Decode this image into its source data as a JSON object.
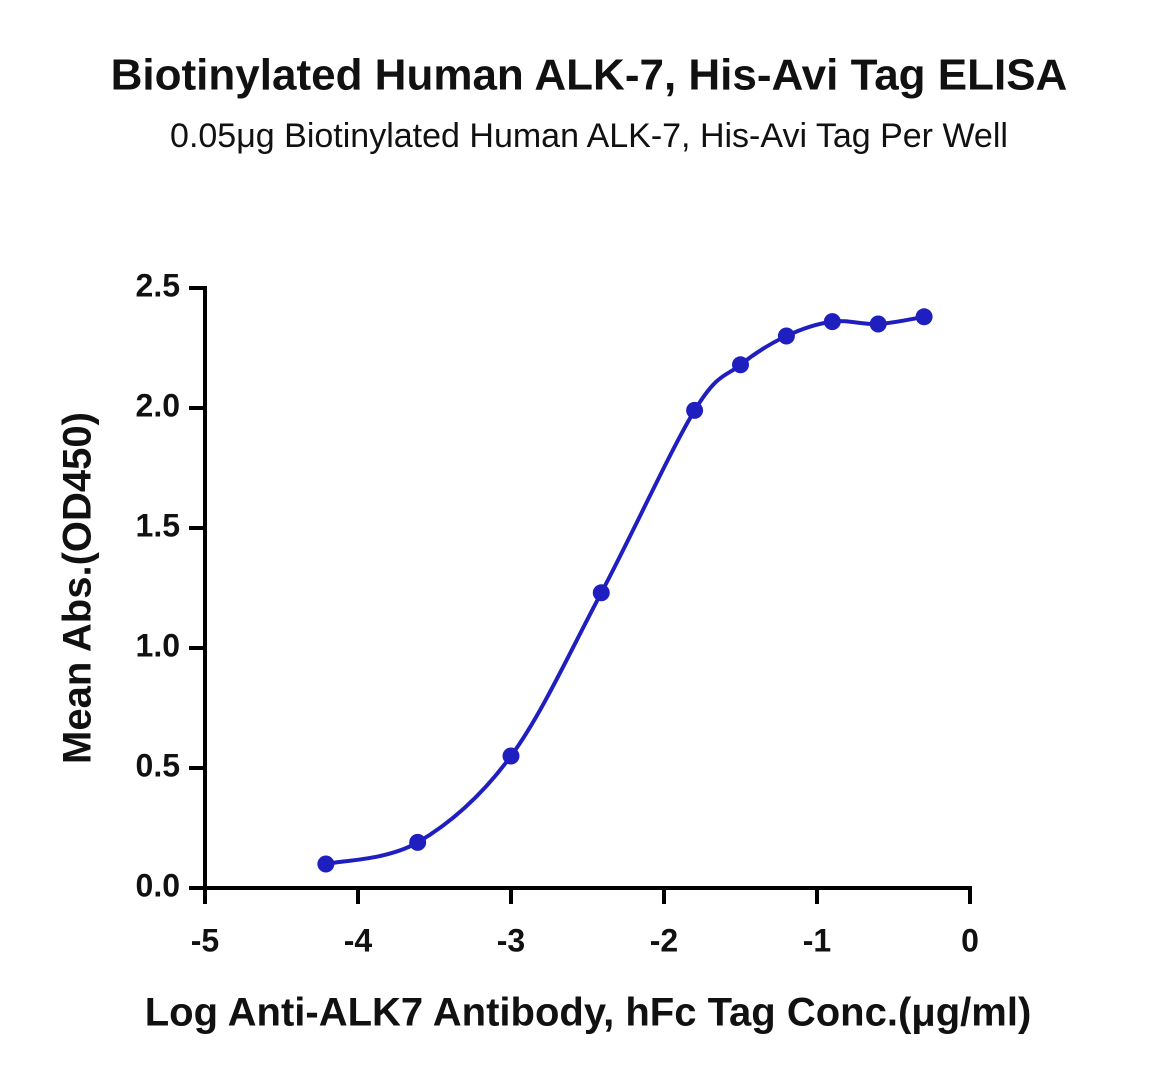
{
  "chart_data": {
    "type": "scatter",
    "title": "Biotinylated Human ALK-7, His-Avi Tag ELISA",
    "subtitle": "0.05μg Biotinylated Human ALK-7, His-Avi Tag Per Well",
    "x_label": "Log Anti-ALK7 Antibody, hFc Tag Conc.(μg/ml)",
    "y_label": "Mean Abs.(OD450)",
    "x": [
      -4.21,
      -3.61,
      -3.0,
      -2.41,
      -1.8,
      -1.5,
      -1.2,
      -0.9,
      -0.6,
      -0.3
    ],
    "series": [
      {
        "color": "#1f1fbf",
        "values": [
          0.1,
          0.19,
          0.55,
          1.23,
          1.99,
          2.18,
          2.3,
          2.36,
          2.35,
          2.38
        ]
      }
    ],
    "fit_curve": true,
    "xlim": [
      -5,
      0
    ],
    "xticks": [
      -5,
      -4,
      -3,
      -2,
      -1,
      0
    ],
    "ylim": [
      0,
      2.5
    ],
    "yticks": [
      {
        "value": 0,
        "label": "0.0"
      },
      0.5,
      {
        "value": 1,
        "label": "1.0"
      },
      1.5,
      {
        "value": 2,
        "label": "2.0"
      },
      2.5
    ],
    "grid": false
  }
}
